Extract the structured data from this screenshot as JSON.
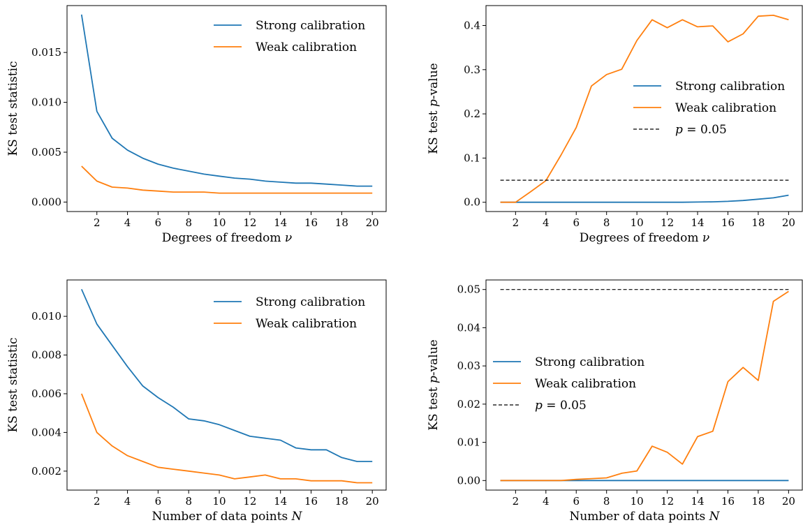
{
  "chart_data": [
    {
      "type": "line",
      "xlabel": "Degrees of freedom ν",
      "ylabel": "KS test statistic",
      "xlim": [
        0.05,
        20.95
      ],
      "ylim": [
        -0.00095,
        0.0197
      ],
      "xticks": [
        2,
        4,
        6,
        8,
        10,
        12,
        14,
        16,
        18,
        20
      ],
      "xtick_labels": [
        "2",
        "4",
        "6",
        "8",
        "10",
        "12",
        "14",
        "16",
        "18",
        "20"
      ],
      "yticks": [
        0.0,
        0.005,
        0.01,
        0.015
      ],
      "ytick_labels": [
        "0.000",
        "0.005",
        "0.010",
        "0.015"
      ],
      "legend_position": "top-right",
      "series": [
        {
          "name": "Strong calibration",
          "color": "#1f77b4",
          "style": "solid",
          "x": [
            1,
            2,
            3,
            4,
            5,
            6,
            7,
            8,
            9,
            10,
            11,
            12,
            13,
            14,
            15,
            16,
            17,
            18,
            19,
            20
          ],
          "y": [
            0.0188,
            0.0091,
            0.0064,
            0.0052,
            0.0044,
            0.0038,
            0.0034,
            0.0031,
            0.0028,
            0.0026,
            0.0024,
            0.0023,
            0.0021,
            0.002,
            0.0019,
            0.0019,
            0.0018,
            0.0017,
            0.0016,
            0.0016
          ]
        },
        {
          "name": "Weak calibration",
          "color": "#ff7f0e",
          "style": "solid",
          "x": [
            1,
            2,
            3,
            4,
            5,
            6,
            7,
            8,
            9,
            10,
            11,
            12,
            13,
            14,
            15,
            16,
            17,
            18,
            19,
            20
          ],
          "y": [
            0.0036,
            0.0021,
            0.0015,
            0.0014,
            0.0012,
            0.0011,
            0.001,
            0.001,
            0.001,
            0.0009,
            0.0009,
            0.0009,
            0.0009,
            0.0009,
            0.0009,
            0.0009,
            0.0009,
            0.0009,
            0.0009,
            0.0009
          ]
        }
      ]
    },
    {
      "type": "line",
      "xlabel": "Degrees of freedom ν",
      "ylabel": "KS test p-value",
      "xlim": [
        0.05,
        20.95
      ],
      "ylim": [
        -0.021,
        0.445
      ],
      "xticks": [
        2,
        4,
        6,
        8,
        10,
        12,
        14,
        16,
        18,
        20
      ],
      "xtick_labels": [
        "2",
        "4",
        "6",
        "8",
        "10",
        "12",
        "14",
        "16",
        "18",
        "20"
      ],
      "yticks": [
        0.0,
        0.1,
        0.2,
        0.3,
        0.4
      ],
      "ytick_labels": [
        "0.0",
        "0.1",
        "0.2",
        "0.3",
        "0.4"
      ],
      "legend_position": "center-right",
      "series": [
        {
          "name": "Strong calibration",
          "color": "#1f77b4",
          "style": "solid",
          "x": [
            1,
            2,
            3,
            4,
            5,
            6,
            7,
            8,
            9,
            10,
            11,
            12,
            13,
            14,
            15,
            16,
            17,
            18,
            19,
            20
          ],
          "y": [
            0,
            0,
            0,
            0,
            0,
            0,
            0,
            0,
            0,
            0,
            0,
            0,
            0,
            0.0005,
            0.001,
            0.002,
            0.004,
            0.007,
            0.01,
            0.016
          ]
        },
        {
          "name": "Weak calibration",
          "color": "#ff7f0e",
          "style": "solid",
          "x": [
            1,
            2,
            3,
            4,
            5,
            6,
            7,
            8,
            9,
            10,
            11,
            12,
            13,
            14,
            15,
            16,
            17,
            18,
            19,
            20
          ],
          "y": [
            0,
            0,
            0.024,
            0.049,
            0.107,
            0.169,
            0.263,
            0.289,
            0.301,
            0.366,
            0.413,
            0.395,
            0.413,
            0.397,
            0.399,
            0.363,
            0.381,
            0.421,
            0.423,
            0.413
          ]
        },
        {
          "name": "p = 0.05",
          "color": "#000000",
          "style": "dashed",
          "x": [
            1,
            20
          ],
          "y": [
            0.05,
            0.05
          ]
        }
      ]
    },
    {
      "type": "line",
      "xlabel": "Number of data points N",
      "ylabel": "KS test statistic",
      "xlim": [
        0.05,
        20.95
      ],
      "ylim": [
        0.00102,
        0.01188
      ],
      "xticks": [
        2,
        4,
        6,
        8,
        10,
        12,
        14,
        16,
        18,
        20
      ],
      "xtick_labels": [
        "2",
        "4",
        "6",
        "8",
        "10",
        "12",
        "14",
        "16",
        "18",
        "20"
      ],
      "yticks": [
        0.002,
        0.004,
        0.006,
        0.008,
        0.01
      ],
      "ytick_labels": [
        "0.002",
        "0.004",
        "0.006",
        "0.008",
        "0.010"
      ],
      "legend_position": "top-right",
      "series": [
        {
          "name": "Strong calibration",
          "color": "#1f77b4",
          "style": "solid",
          "x": [
            1,
            2,
            3,
            4,
            5,
            6,
            7,
            8,
            9,
            10,
            11,
            12,
            13,
            14,
            15,
            16,
            17,
            18,
            19,
            20
          ],
          "y": [
            0.0114,
            0.0096,
            0.0085,
            0.0074,
            0.0064,
            0.0058,
            0.0053,
            0.0047,
            0.0046,
            0.0044,
            0.0041,
            0.0038,
            0.0037,
            0.0036,
            0.0032,
            0.0031,
            0.0031,
            0.0027,
            0.0025,
            0.0025
          ]
        },
        {
          "name": "Weak calibration",
          "color": "#ff7f0e",
          "style": "solid",
          "x": [
            1,
            2,
            3,
            4,
            5,
            6,
            7,
            8,
            9,
            10,
            11,
            12,
            13,
            14,
            15,
            16,
            17,
            18,
            19,
            20
          ],
          "y": [
            0.006,
            0.004,
            0.0033,
            0.0028,
            0.0025,
            0.0022,
            0.0021,
            0.002,
            0.0019,
            0.0018,
            0.0016,
            0.0017,
            0.0018,
            0.0016,
            0.0016,
            0.0015,
            0.0015,
            0.0015,
            0.0014,
            0.0014
          ]
        }
      ]
    },
    {
      "type": "line",
      "xlabel": "Number of data points N",
      "ylabel": "KS test p-value",
      "xlim": [
        0.05,
        20.95
      ],
      "ylim": [
        -0.0025,
        0.0525
      ],
      "xticks": [
        2,
        4,
        6,
        8,
        10,
        12,
        14,
        16,
        18,
        20
      ],
      "xtick_labels": [
        "2",
        "4",
        "6",
        "8",
        "10",
        "12",
        "14",
        "16",
        "18",
        "20"
      ],
      "yticks": [
        0.0,
        0.01,
        0.02,
        0.03,
        0.04,
        0.05
      ],
      "ytick_labels": [
        "0.00",
        "0.01",
        "0.02",
        "0.03",
        "0.04",
        "0.05"
      ],
      "legend_position": "center-left",
      "series": [
        {
          "name": "Strong calibration",
          "color": "#1f77b4",
          "style": "solid",
          "x": [
            1,
            2,
            3,
            4,
            5,
            6,
            7,
            8,
            9,
            10,
            11,
            12,
            13,
            14,
            15,
            16,
            17,
            18,
            19,
            20
          ],
          "y": [
            0,
            0,
            0,
            0,
            0,
            0,
            0,
            0,
            0,
            0,
            0,
            0,
            0,
            0,
            0,
            0,
            0,
            0,
            0,
            0
          ]
        },
        {
          "name": "Weak calibration",
          "color": "#ff7f0e",
          "style": "solid",
          "x": [
            1,
            2,
            3,
            4,
            5,
            6,
            7,
            8,
            9,
            10,
            11,
            12,
            13,
            14,
            15,
            16,
            17,
            18,
            19,
            20
          ],
          "y": [
            0,
            0,
            0,
            0,
            0,
            0.0003,
            0.0005,
            0.0007,
            0.0019,
            0.0025,
            0.009,
            0.0074,
            0.0043,
            0.0115,
            0.0129,
            0.0259,
            0.0296,
            0.0262,
            0.0469,
            0.0495
          ]
        },
        {
          "name": "p = 0.05",
          "color": "#000000",
          "style": "dashed",
          "x": [
            1,
            20
          ],
          "y": [
            0.05,
            0.05
          ]
        }
      ]
    }
  ]
}
